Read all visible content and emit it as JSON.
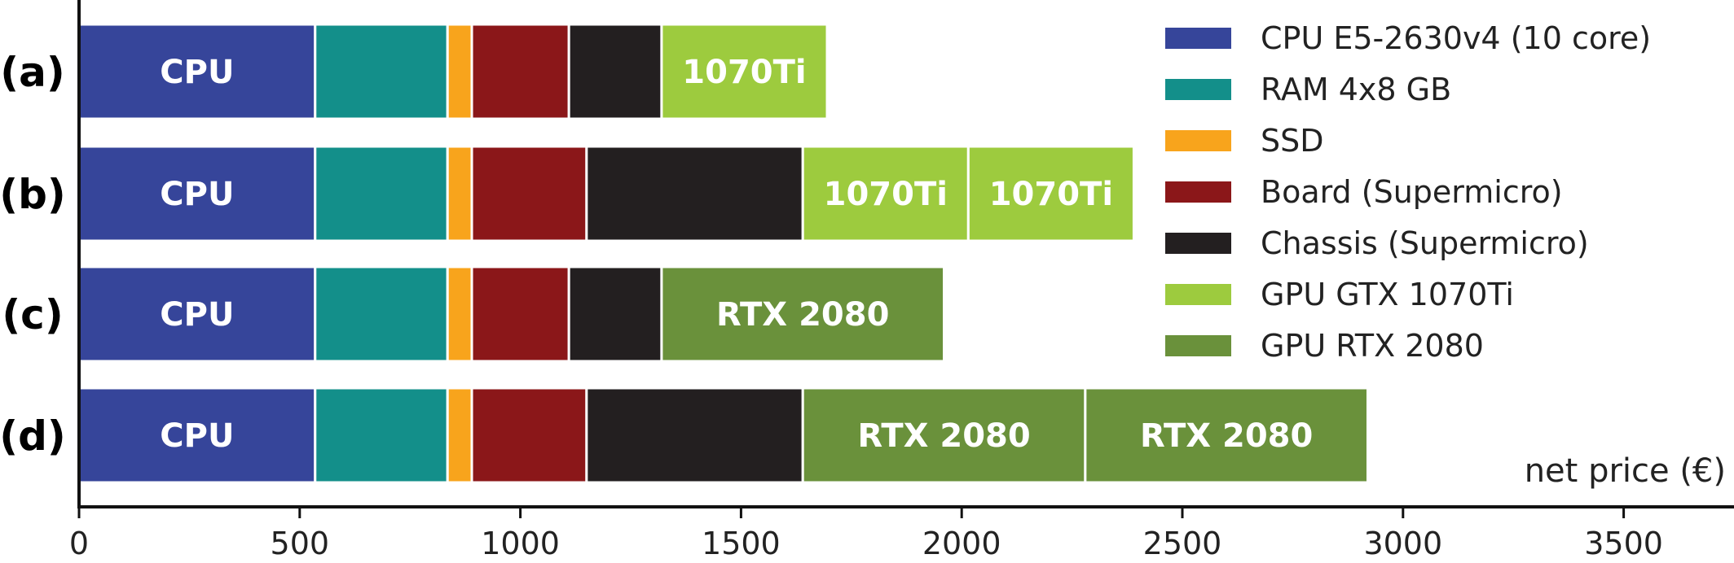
{
  "chart_data": {
    "type": "bar",
    "orientation": "horizontal",
    "stacked": true,
    "xlabel": "net price (€)",
    "xlim": [
      0,
      3750
    ],
    "xticks": [
      0,
      500,
      1000,
      1500,
      2000,
      2500,
      3000,
      3500
    ],
    "legend_position": "top-right",
    "grid": false,
    "components": [
      {
        "key": "cpu",
        "name": "CPU E5-2630v4 (10 core)",
        "color": "#36459a"
      },
      {
        "key": "ram",
        "name": "RAM 4x8 GB",
        "color": "#138f8a"
      },
      {
        "key": "ssd",
        "name": "SSD",
        "color": "#f8a41c"
      },
      {
        "key": "board",
        "name": "Board (Supermicro)",
        "color": "#8b1719"
      },
      {
        "key": "chassis",
        "name": "Chassis (Supermicro)",
        "color": "#231f20"
      },
      {
        "key": "gtx",
        "name": "GPU GTX 1070Ti",
        "color": "#9dcb3e"
      },
      {
        "key": "rtx",
        "name": "GPU RTX 2080",
        "color": "#6a913b"
      }
    ],
    "rows": [
      {
        "label": "(a)",
        "segments": [
          {
            "component": "cpu",
            "value": 535,
            "text": "CPU"
          },
          {
            "component": "ram",
            "value": 300,
            "text": ""
          },
          {
            "component": "ssd",
            "value": 55,
            "text": ""
          },
          {
            "component": "board",
            "value": 220,
            "text": ""
          },
          {
            "component": "chassis",
            "value": 210,
            "text": ""
          },
          {
            "component": "gtx",
            "value": 375,
            "text": "1070Ti"
          }
        ]
      },
      {
        "label": "(b)",
        "segments": [
          {
            "component": "cpu",
            "value": 535,
            "text": "CPU"
          },
          {
            "component": "ram",
            "value": 300,
            "text": ""
          },
          {
            "component": "ssd",
            "value": 55,
            "text": ""
          },
          {
            "component": "board",
            "value": 260,
            "text": ""
          },
          {
            "component": "chassis",
            "value": 490,
            "text": ""
          },
          {
            "component": "gtx",
            "value": 375,
            "text": "1070Ti"
          },
          {
            "component": "gtx",
            "value": 375,
            "text": "1070Ti"
          }
        ]
      },
      {
        "label": "(c)",
        "segments": [
          {
            "component": "cpu",
            "value": 535,
            "text": "CPU"
          },
          {
            "component": "ram",
            "value": 300,
            "text": ""
          },
          {
            "component": "ssd",
            "value": 55,
            "text": ""
          },
          {
            "component": "board",
            "value": 220,
            "text": ""
          },
          {
            "component": "chassis",
            "value": 210,
            "text": ""
          },
          {
            "component": "rtx",
            "value": 640,
            "text": "RTX 2080"
          }
        ]
      },
      {
        "label": "(d)",
        "segments": [
          {
            "component": "cpu",
            "value": 535,
            "text": "CPU"
          },
          {
            "component": "ram",
            "value": 300,
            "text": ""
          },
          {
            "component": "ssd",
            "value": 55,
            "text": ""
          },
          {
            "component": "board",
            "value": 260,
            "text": ""
          },
          {
            "component": "chassis",
            "value": 490,
            "text": ""
          },
          {
            "component": "rtx",
            "value": 640,
            "text": "RTX 2080"
          },
          {
            "component": "rtx",
            "value": 640,
            "text": "RTX 2080"
          }
        ]
      }
    ]
  }
}
